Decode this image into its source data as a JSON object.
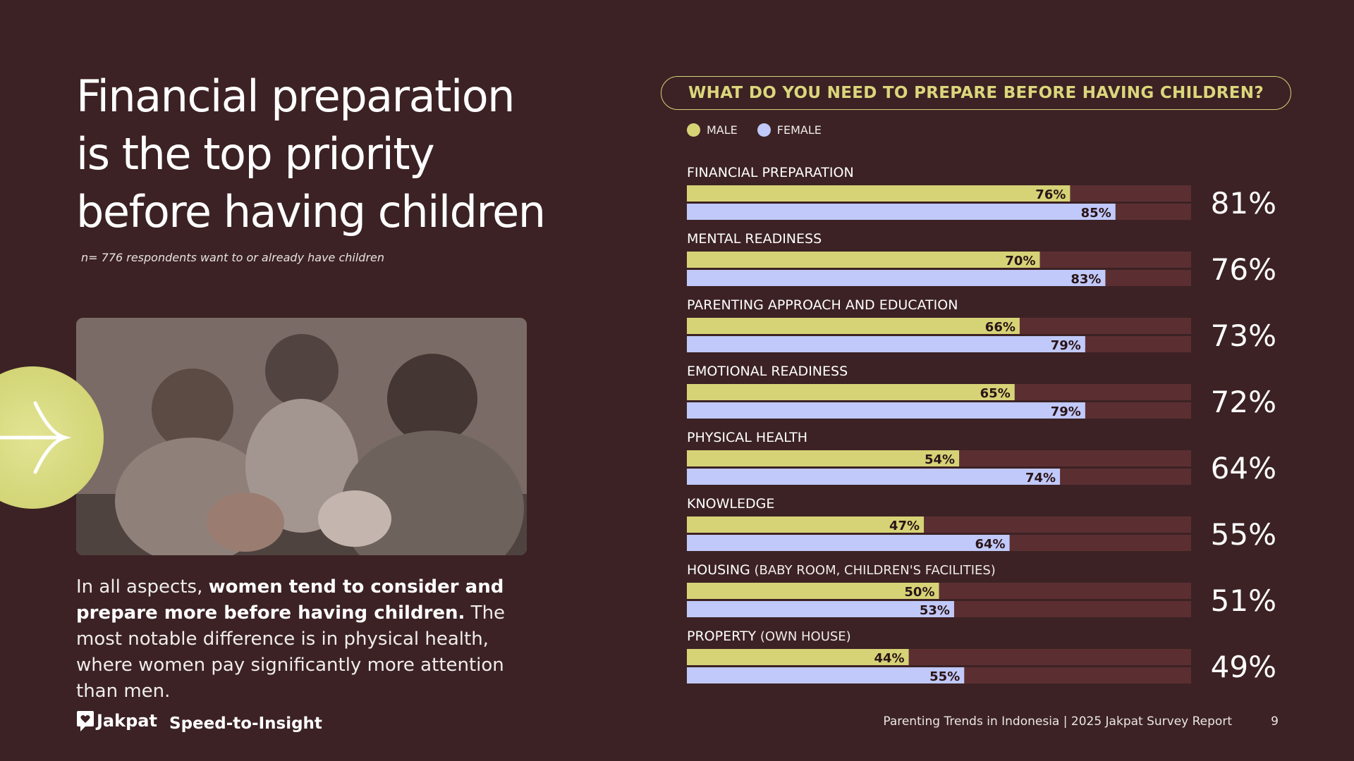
{
  "title_lines": [
    "Financial preparation",
    "is the top priority",
    "before having children"
  ],
  "sample_note": "n= 776 respondents want to or already have children",
  "body": {
    "part1": "In all aspects, ",
    "bold": "women tend to consider and prepare more before having children.",
    "part2": " The most notable difference is in physical health, where women pay significantly more attention than men."
  },
  "brand": {
    "name": "Jakpat",
    "tagline": "Speed-to-Insight"
  },
  "footer": {
    "report": "Parenting Trends in Indonesia | 2025 Jakpat Survey Report",
    "page": "9"
  },
  "colors": {
    "background": "#3c2224",
    "male": "#d6d377",
    "female": "#c0c9f9",
    "track": "#5b2f32",
    "accent": "#d6d37c"
  },
  "icons": {
    "badge": "arrow-right-icon",
    "logo": "speech-heart-icon",
    "photo": "family-piggy-bank-photo"
  },
  "chart_data": {
    "type": "bar",
    "title": "WHAT DO YOU NEED TO PREPARE BEFORE HAVING CHILDREN?",
    "legend": {
      "position": "top-left",
      "entries": [
        "MALE",
        "FEMALE"
      ]
    },
    "xlim": [
      0,
      100
    ],
    "categories": [
      {
        "label": "FINANCIAL PREPARATION",
        "qualifier": "",
        "total": "81%"
      },
      {
        "label": "MENTAL READINESS",
        "qualifier": "",
        "total": "76%"
      },
      {
        "label": "PARENTING APPROACH AND EDUCATION",
        "qualifier": "",
        "total": "73%"
      },
      {
        "label": "EMOTIONAL READINESS",
        "qualifier": "",
        "total": "72%"
      },
      {
        "label": "PHYSICAL HEALTH",
        "qualifier": "",
        "total": "64%"
      },
      {
        "label": "KNOWLEDGE",
        "qualifier": "",
        "total": "55%"
      },
      {
        "label": "HOUSING",
        "qualifier": " (BABY ROOM, CHILDREN'S FACILITIES)",
        "total": "51%"
      },
      {
        "label": "PROPERTY",
        "qualifier": " (OWN HOUSE)",
        "total": "49%"
      }
    ],
    "series": [
      {
        "name": "MALE",
        "values": [
          76,
          70,
          66,
          65,
          54,
          47,
          50,
          44
        ]
      },
      {
        "name": "FEMALE",
        "values": [
          85,
          83,
          79,
          79,
          74,
          64,
          53,
          55
        ]
      }
    ]
  }
}
